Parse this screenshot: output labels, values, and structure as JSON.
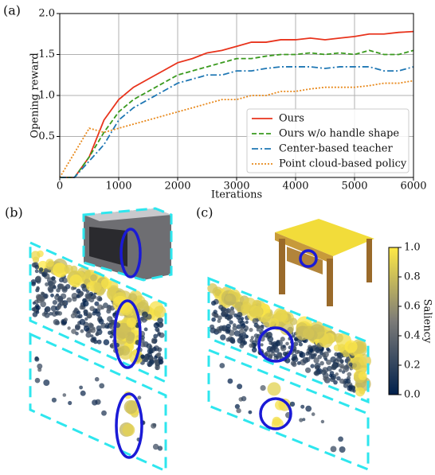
{
  "panel_labels": [
    "(a)",
    "(b)",
    "(c)"
  ],
  "chart_data": [
    {
      "type": "line",
      "ylabel": "Opening reward",
      "xlabel": "Iterations",
      "x": [
        0,
        250,
        500,
        750,
        1000,
        1250,
        1500,
        1750,
        2000,
        2250,
        2500,
        2750,
        3000,
        3250,
        3500,
        3750,
        4000,
        4250,
        4500,
        4750,
        5000,
        5250,
        5500,
        5750,
        6000
      ],
      "series": [
        {
          "name": "Ours",
          "color": "#e8331c",
          "linestyle": "solid",
          "values": [
            0,
            0,
            0.25,
            0.7,
            0.95,
            1.1,
            1.2,
            1.3,
            1.4,
            1.45,
            1.52,
            1.55,
            1.6,
            1.65,
            1.65,
            1.68,
            1.68,
            1.7,
            1.68,
            1.7,
            1.72,
            1.75,
            1.75,
            1.77,
            1.78
          ]
        },
        {
          "name": "Ours w/o handle shape",
          "color": "#3a9a1e",
          "linestyle": "dashed",
          "values": [
            0,
            0,
            0.25,
            0.55,
            0.8,
            0.95,
            1.05,
            1.15,
            1.25,
            1.3,
            1.35,
            1.4,
            1.45,
            1.45,
            1.48,
            1.5,
            1.5,
            1.52,
            1.5,
            1.52,
            1.5,
            1.55,
            1.5,
            1.5,
            1.55
          ]
        },
        {
          "name": "Center-based teacher",
          "color": "#1f77b4",
          "linestyle": "dashdot",
          "values": [
            0,
            0,
            0.2,
            0.4,
            0.7,
            0.85,
            0.95,
            1.05,
            1.15,
            1.2,
            1.25,
            1.25,
            1.3,
            1.3,
            1.33,
            1.35,
            1.35,
            1.35,
            1.33,
            1.35,
            1.35,
            1.35,
            1.3,
            1.3,
            1.35
          ]
        },
        {
          "name": "Point cloud-based policy",
          "color": "#e8891c",
          "linestyle": "dotted",
          "values": [
            0,
            0.3,
            0.6,
            0.55,
            0.6,
            0.65,
            0.7,
            0.75,
            0.8,
            0.85,
            0.9,
            0.95,
            0.95,
            1.0,
            1.0,
            1.05,
            1.05,
            1.08,
            1.1,
            1.1,
            1.1,
            1.12,
            1.15,
            1.15,
            1.18
          ]
        }
      ],
      "xlim": [
        0,
        6000
      ],
      "xticks": [
        0,
        1000,
        2000,
        3000,
        4000,
        5000,
        6000
      ],
      "ylim": [
        0,
        2
      ],
      "yticks": [
        0.5,
        {
          "value": 1,
          "label": "1.0"
        },
        1.5,
        {
          "value": 2,
          "label": "2.0"
        }
      ],
      "grid": true,
      "legend": "lower right"
    },
    {
      "type": "colorbar",
      "label": "Saliency",
      "colors": [
        "#00204c",
        "#7c7b78",
        "#ffe945"
      ],
      "ylim": [
        0,
        1
      ],
      "yticks": [
        {
          "value": 0,
          "label": "0.0"
        },
        0.2,
        0.4,
        0.6,
        0.8,
        {
          "value": 1,
          "label": "1.0"
        }
      ]
    }
  ]
}
